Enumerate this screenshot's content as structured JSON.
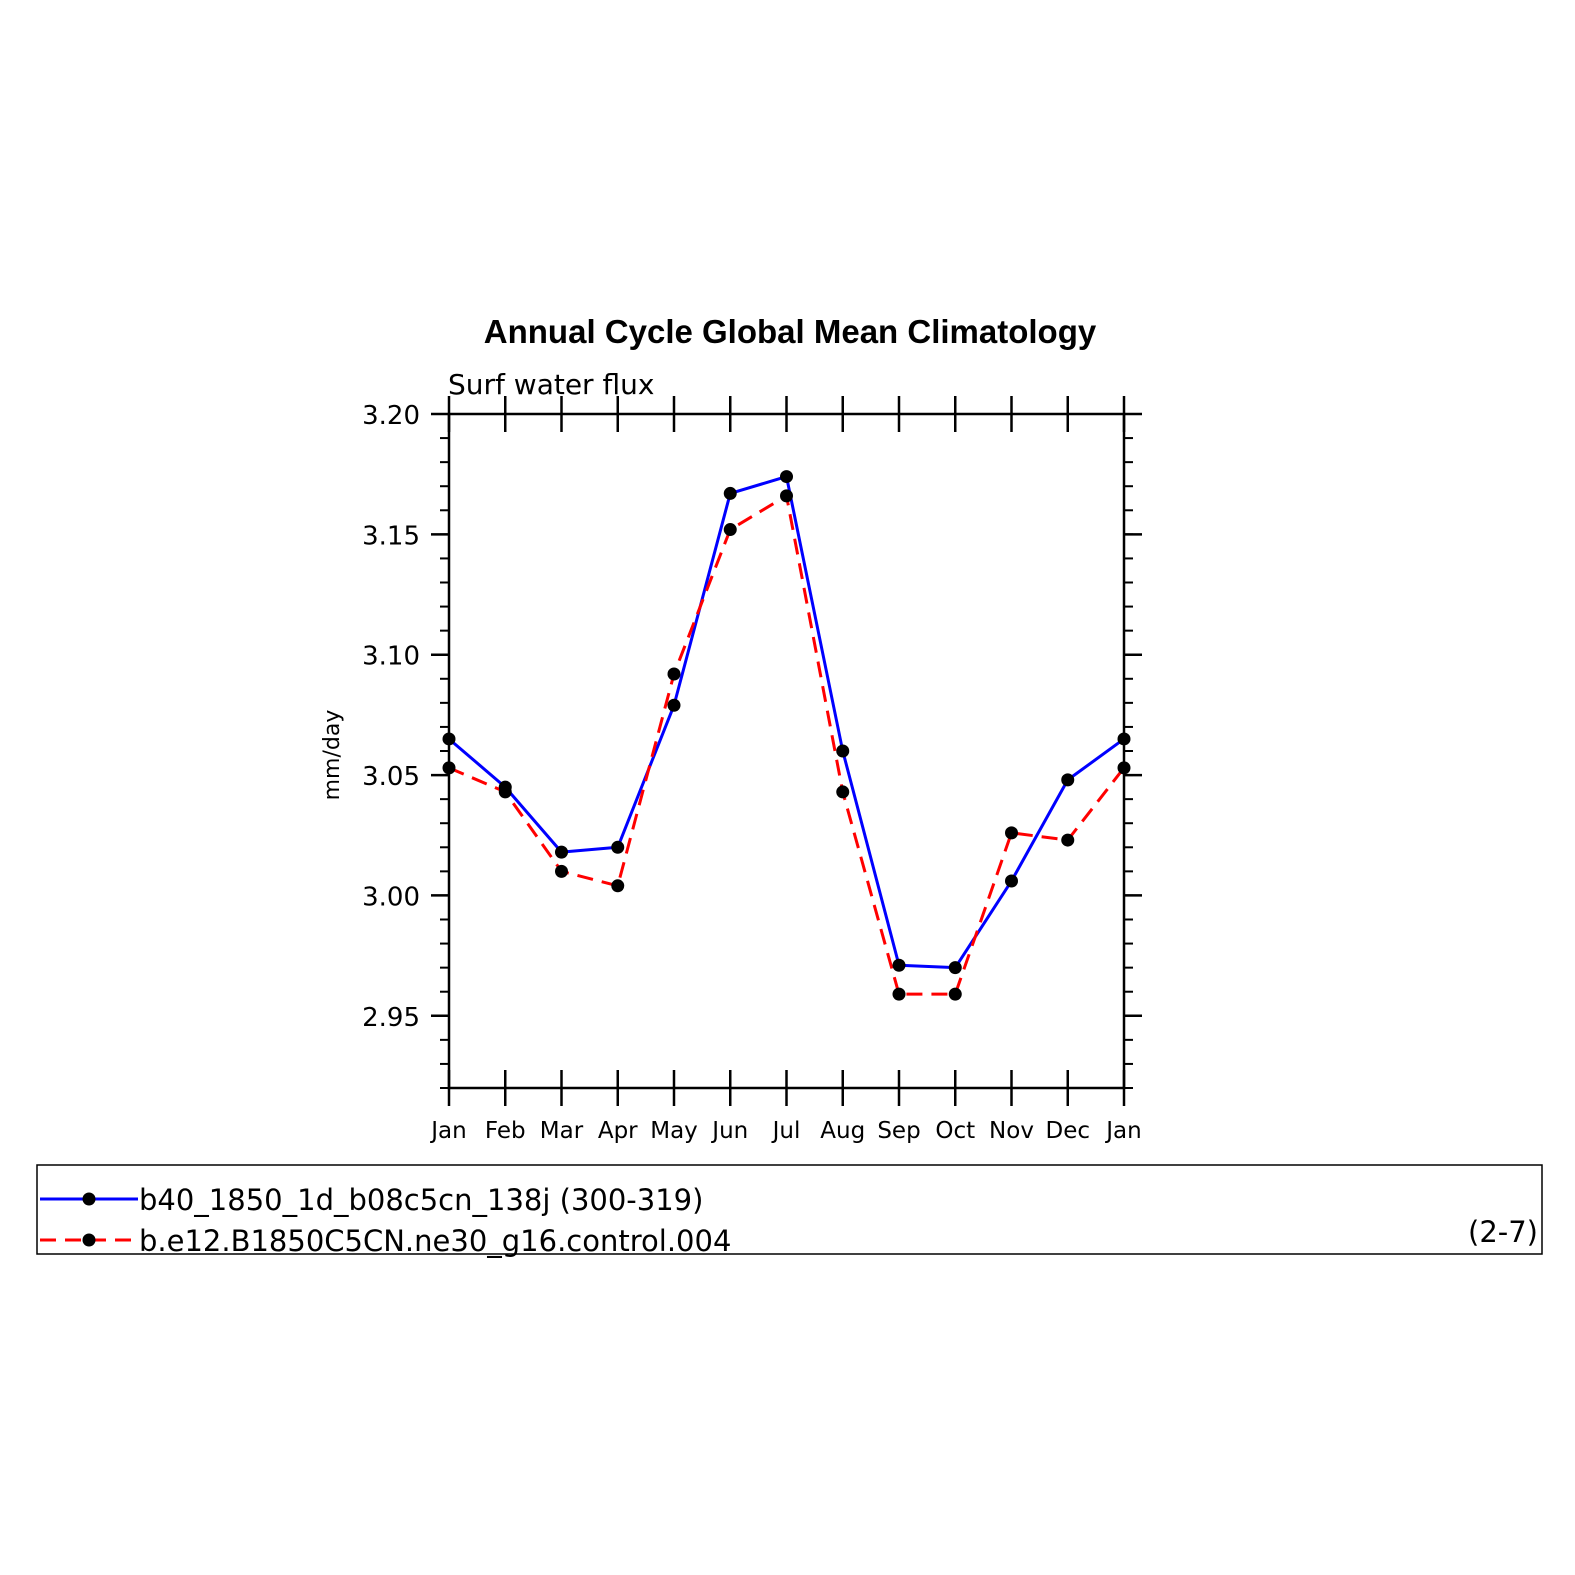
{
  "chart_data": {
    "type": "line",
    "title": "Annual Cycle Global Mean Climatology",
    "subtitle": "Surf water flux",
    "xlabel": "",
    "ylabel": "mm/day",
    "categories": [
      "Jan",
      "Feb",
      "Mar",
      "Apr",
      "May",
      "Jun",
      "Jul",
      "Aug",
      "Sep",
      "Oct",
      "Nov",
      "Dec",
      "Jan"
    ],
    "ylim": [
      2.92,
      3.2
    ],
    "yticks": [
      "3.20",
      "3.15",
      "3.10",
      "3.05",
      "3.00",
      "2.95"
    ],
    "ytick_values": [
      3.2,
      3.15,
      3.1,
      3.05,
      3.0,
      2.95
    ],
    "grid": false,
    "legend_placement": "below",
    "series": [
      {
        "name": "b40_1850_1d_b08c5cn_138j (300-319)",
        "color": "#0000ff",
        "dash": "solid",
        "marker": "filled-circle",
        "values": [
          3.065,
          3.045,
          3.018,
          3.02,
          3.079,
          3.167,
          3.174,
          3.06,
          2.971,
          2.97,
          3.006,
          3.048,
          3.065
        ]
      },
      {
        "name": "b.e12.B1850C5CN.ne30_g16.control.004",
        "color": "#ff0000",
        "dash": "dashed",
        "marker": "filled-circle",
        "values": [
          3.053,
          3.043,
          3.01,
          3.004,
          3.092,
          3.152,
          3.166,
          3.043,
          2.959,
          2.959,
          3.026,
          3.023,
          3.053
        ]
      }
    ],
    "annotation": "(2-7)"
  }
}
